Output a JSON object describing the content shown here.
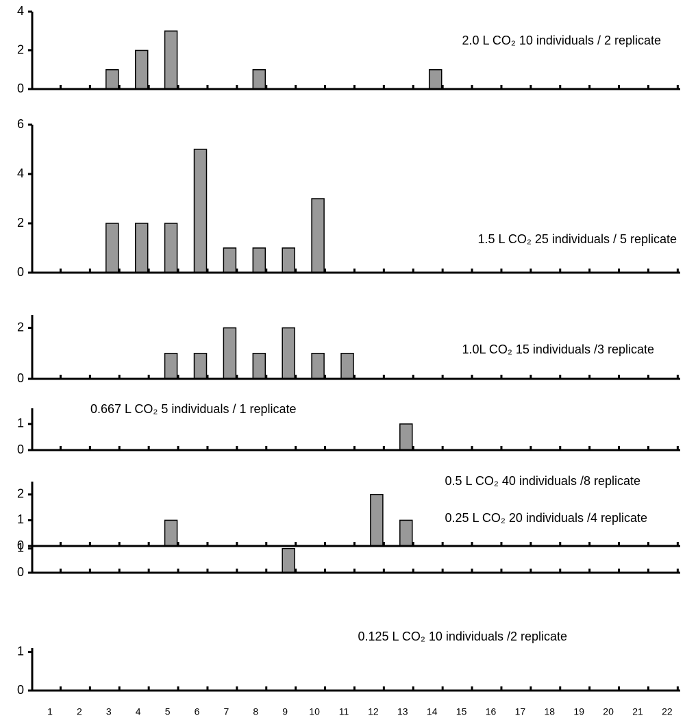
{
  "chart_data": [
    {
      "type": "bar",
      "title": "2.0 L CO₂ 10 individuals / 2 replicate",
      "values": [
        0,
        0,
        1,
        2,
        3,
        0,
        0,
        1,
        0,
        0,
        0,
        0,
        0,
        1,
        0,
        0,
        0,
        0,
        0,
        0,
        0,
        0
      ],
      "color": "#999999",
      "ylim": [
        0,
        4
      ],
      "yticks": [
        0,
        2,
        4
      ]
    },
    {
      "type": "bar",
      "title": "1.5 L CO₂ 25 individuals / 5 replicate",
      "values": [
        0,
        0,
        2,
        2,
        2,
        5,
        1,
        1,
        1,
        3,
        0,
        0,
        0,
        0,
        0,
        0,
        0,
        0,
        0,
        0,
        0,
        0
      ],
      "color": "#999999",
      "ylim": [
        0,
        6
      ],
      "yticks": [
        0,
        2,
        4,
        6
      ]
    },
    {
      "type": "bar",
      "title": "1.0L CO₂ 15 individuals /3 replicate",
      "values": [
        0,
        0,
        0,
        0,
        1,
        1,
        2,
        1,
        2,
        1,
        1,
        0,
        0,
        0,
        0,
        0,
        0,
        0,
        0,
        0,
        0,
        0
      ],
      "color": "#999999",
      "ylim": [
        0,
        2.5
      ],
      "yticks": [
        0,
        2
      ]
    },
    {
      "type": "bar",
      "title": "0.667 L CO₂ 5 individuals / 1 replicate",
      "values": [
        0,
        0,
        0,
        0,
        0,
        0,
        0,
        0,
        0,
        0,
        0,
        0,
        1,
        0,
        0,
        0,
        0,
        0,
        0,
        0,
        0,
        0
      ],
      "color": "#999999",
      "ylim": [
        0,
        1.6
      ],
      "yticks": [
        0,
        1
      ]
    },
    {
      "type": "bar",
      "title": "0.5 L CO₂ 40 individuals /8 replicate",
      "values": [
        0,
        0,
        0,
        0,
        1,
        0,
        0,
        0,
        0,
        0,
        0,
        2,
        1,
        0,
        0,
        0,
        0,
        0,
        0,
        0,
        0,
        0
      ],
      "color": "#999999",
      "ylim": [
        0,
        2.5
      ],
      "yticks": [
        0,
        1,
        2
      ]
    },
    {
      "type": "bar",
      "title": "0.25 L CO₂ 20 individuals /4 replicate",
      "values": [
        0,
        0,
        0,
        0,
        0,
        0,
        0,
        0,
        1,
        0,
        0,
        0,
        0,
        0,
        0,
        0,
        0,
        0,
        0,
        0,
        0,
        0
      ],
      "color": "#999999",
      "ylim": [
        0,
        1.5
      ],
      "yticks": [
        0,
        1
      ]
    },
    {
      "type": "bar",
      "title": "0.125 L CO₂ 10 individuals /2 replicate",
      "categories": [
        "1",
        "2",
        "3",
        "4",
        "5",
        "6",
        "7",
        "8",
        "9",
        "10",
        "11",
        "12",
        "13",
        "14",
        "15",
        "16",
        "17",
        "18",
        "19",
        "20",
        "21",
        "22"
      ],
      "values": [
        0,
        0,
        0,
        0,
        0,
        0,
        0,
        0,
        0,
        0,
        0,
        0,
        0,
        0,
        0,
        0,
        0,
        0,
        0,
        0,
        0,
        0
      ],
      "color": "#999999",
      "ylim": [
        0,
        1.1
      ],
      "yticks": [
        0,
        1
      ]
    }
  ]
}
